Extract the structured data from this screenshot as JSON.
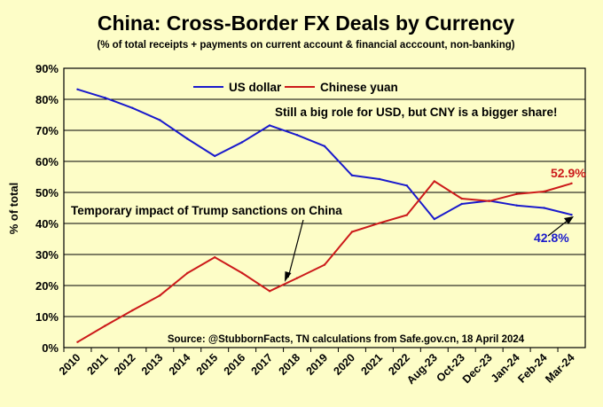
{
  "chart_data": {
    "type": "line",
    "title": "China: Cross-Border FX Deals by Currency",
    "subtitle": "(% of total receipts + payments on current account & financial acccount, non-banking)",
    "ylabel": "% of total",
    "xlabel": "",
    "ylim": [
      0,
      90
    ],
    "yticks": [
      "0%",
      "10%",
      "20%",
      "30%",
      "40%",
      "50%",
      "60%",
      "70%",
      "80%",
      "90%"
    ],
    "grid": true,
    "legend": "top",
    "categories": [
      "2010",
      "2011",
      "2012",
      "2013",
      "2014",
      "2015",
      "2016",
      "2017",
      "2018",
      "2019",
      "2020",
      "2021",
      "2022",
      "Aug-23",
      "Oct-23",
      "Dec-23",
      "Jan-24",
      "Feb-24",
      "Mar-24"
    ],
    "series": [
      {
        "name": "US dollar",
        "color": "#1a1acc",
        "values": [
          83.2,
          80.5,
          77.2,
          73.3,
          67.3,
          61.7,
          66.2,
          71.6,
          68.5,
          64.9,
          55.5,
          54.3,
          52.2,
          41.4,
          46.3,
          47.3,
          45.8,
          45.0,
          42.8
        ]
      },
      {
        "name": "Chinese yuan",
        "color": "#cc1a1a",
        "values": [
          1.8,
          7.0,
          12.0,
          16.8,
          24.0,
          29.1,
          24.0,
          18.2,
          22.4,
          26.7,
          37.3,
          40.1,
          42.7,
          53.6,
          48.0,
          47.2,
          49.5,
          50.3,
          52.9
        ]
      }
    ],
    "annotations": [
      {
        "text": "Still a big role for USD, but CNY is a bigger share!"
      },
      {
        "text": "Temporary impact of Trump sanctions on China"
      },
      {
        "text": "Source: @StubbornFacts, TN calculations from Safe.gov.cn, 18 April 2024"
      }
    ],
    "end_labels": [
      {
        "text": "52.9%",
        "color": "#cc1a1a"
      },
      {
        "text": "42.8%",
        "color": "#1a1acc"
      }
    ]
  }
}
